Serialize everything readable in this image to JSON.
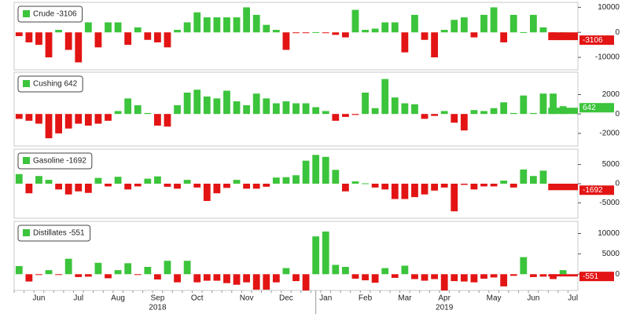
{
  "chart_data": [
    {
      "type": "bar",
      "legend": "Crude -3106",
      "ylim": [
        -15000,
        12000
      ],
      "yticks": [
        10000,
        0,
        -10000
      ],
      "positive_color": "#3cc43c",
      "negative_color": "#e31414",
      "values": [
        -1500,
        -4000,
        -5000,
        -10000,
        1000,
        -7000,
        -12000,
        4000,
        -6000,
        4000,
        4000,
        -5000,
        2000,
        -3000,
        -4000,
        -6000,
        1000,
        4000,
        8000,
        6000,
        6000,
        6000,
        6000,
        10000,
        7000,
        3000,
        1000,
        -7000,
        -100,
        -200,
        100,
        -300,
        -1000,
        -2000,
        9000,
        1000,
        1500,
        4000,
        4000,
        -8000,
        7000,
        -3000,
        -10000,
        1000,
        5000,
        6000,
        -2000,
        7000,
        10000,
        -4000,
        7000,
        100,
        7000,
        2000,
        -2000,
        0,
        -3106
      ],
      "value_labels": [
        null,
        null,
        null,
        null,
        null,
        null,
        null,
        null,
        null,
        null,
        null,
        null,
        null,
        null,
        null,
        null,
        null,
        null,
        null,
        null,
        null,
        null,
        null,
        null,
        null,
        null,
        null,
        null,
        null,
        null,
        null,
        null,
        null,
        null,
        null,
        null,
        null,
        null,
        null,
        null,
        null,
        null,
        null,
        null,
        null,
        null,
        null,
        null,
        null,
        null,
        null,
        null,
        null,
        null,
        null,
        null,
        "-3106"
      ]
    },
    {
      "type": "bar",
      "legend": "Cushing 642",
      "ylim": [
        -3300,
        4300
      ],
      "yticks": [
        2000,
        0,
        -2000
      ],
      "positive_color": "#3cc43c",
      "negative_color": "#e31414",
      "values": [
        -500,
        -700,
        -1000,
        -2500,
        -2000,
        -1500,
        -1000,
        -1200,
        -1000,
        -700,
        300,
        1600,
        900,
        100,
        -1200,
        -1300,
        900,
        2200,
        2500,
        1800,
        1600,
        2400,
        1300,
        900,
        2100,
        1600,
        1100,
        1300,
        1100,
        1100,
        700,
        300,
        -700,
        -300,
        -100,
        2200,
        600,
        3600,
        1700,
        1100,
        1000,
        -500,
        -200,
        300,
        -900,
        -1700,
        400,
        300,
        600,
        1200,
        100,
        1900,
        100,
        2100,
        2100,
        800,
        642
      ],
      "value_labels": [
        null,
        null,
        null,
        null,
        null,
        null,
        null,
        null,
        null,
        null,
        null,
        null,
        null,
        null,
        null,
        null,
        null,
        null,
        null,
        null,
        null,
        null,
        null,
        null,
        null,
        null,
        null,
        null,
        null,
        null,
        null,
        null,
        null,
        null,
        null,
        null,
        null,
        null,
        null,
        null,
        null,
        null,
        null,
        null,
        null,
        null,
        null,
        null,
        null,
        null,
        null,
        null,
        null,
        null,
        null,
        null,
        "642"
      ]
    },
    {
      "type": "bar",
      "legend": "Gasoline -1692",
      "ylim": [
        -9000,
        9000
      ],
      "yticks": [
        5000,
        0,
        -5000
      ],
      "positive_color": "#3cc43c",
      "negative_color": "#e31414",
      "values": [
        2500,
        -2500,
        2000,
        1000,
        -1500,
        -2800,
        -2000,
        -2400,
        1500,
        -700,
        1800,
        -1500,
        -700,
        1300,
        1900,
        -800,
        -1300,
        1000,
        -1000,
        -4500,
        -2500,
        -1100,
        1000,
        -1300,
        -1300,
        -800,
        1600,
        1700,
        2200,
        6000,
        7500,
        7000,
        3600,
        -2000,
        600,
        100,
        -1000,
        -1500,
        -4000,
        -4000,
        -3500,
        -2800,
        -1800,
        -1000,
        -7200,
        -300,
        -1500,
        -700,
        -700,
        800,
        -1000,
        3700,
        2000,
        3400,
        -900,
        -1500,
        -1692
      ],
      "value_labels": [
        null,
        null,
        null,
        null,
        null,
        null,
        null,
        null,
        null,
        null,
        null,
        null,
        null,
        null,
        null,
        null,
        null,
        null,
        null,
        null,
        null,
        null,
        null,
        null,
        null,
        null,
        null,
        null,
        null,
        null,
        null,
        null,
        null,
        null,
        null,
        null,
        null,
        null,
        null,
        null,
        null,
        null,
        null,
        null,
        null,
        null,
        null,
        null,
        null,
        null,
        null,
        null,
        null,
        null,
        null,
        null,
        "-1692"
      ]
    },
    {
      "type": "bar",
      "legend": "Distillates -551",
      "ylim": [
        -4000,
        13000
      ],
      "yticks": [
        10000,
        5000,
        0
      ],
      "positive_color": "#3cc43c",
      "negative_color": "#e31414",
      "values": [
        2000,
        -1800,
        -200,
        1000,
        -200,
        3800,
        -700,
        -600,
        2800,
        -1000,
        1000,
        2700,
        -200,
        1800,
        -1300,
        3300,
        -2000,
        3300,
        -2000,
        -1600,
        -1600,
        -2200,
        -2600,
        -2000,
        -3800,
        -3800,
        -2000,
        1500,
        -1700,
        -4000,
        9300,
        10500,
        2300,
        1800,
        -1100,
        -1500,
        -2100,
        1500,
        -900,
        2100,
        -1200,
        -1600,
        -1200,
        -4000,
        -1700,
        -1800,
        -2000,
        -1100,
        -800,
        -3000,
        -400,
        4200,
        -700,
        -600,
        -1200,
        1000,
        -551
      ],
      "value_labels": [
        null,
        null,
        null,
        null,
        null,
        null,
        null,
        null,
        null,
        null,
        null,
        null,
        null,
        null,
        null,
        null,
        null,
        null,
        null,
        null,
        null,
        null,
        null,
        null,
        null,
        null,
        null,
        null,
        null,
        null,
        null,
        null,
        null,
        null,
        null,
        null,
        null,
        null,
        null,
        null,
        null,
        null,
        null,
        null,
        null,
        null,
        null,
        null,
        null,
        null,
        null,
        null,
        null,
        null,
        null,
        null,
        "-551"
      ],
      "categories": [
        null,
        null,
        "Jun",
        null,
        null,
        null,
        "Jul",
        null,
        null,
        null,
        "Aug",
        null,
        null,
        null,
        "Sep",
        null,
        null,
        null,
        "Oct",
        null,
        null,
        null,
        null,
        "Nov",
        null,
        null,
        null,
        "Dec",
        null,
        null,
        null,
        "Jan",
        null,
        null,
        null,
        "Feb",
        null,
        null,
        null,
        "Mar",
        null,
        null,
        null,
        "Apr",
        null,
        null,
        null,
        null,
        "May",
        null,
        null,
        null,
        "Jun",
        null,
        null,
        null,
        "Jul"
      ],
      "year_labels": [
        "2018",
        "2019"
      ]
    }
  ]
}
